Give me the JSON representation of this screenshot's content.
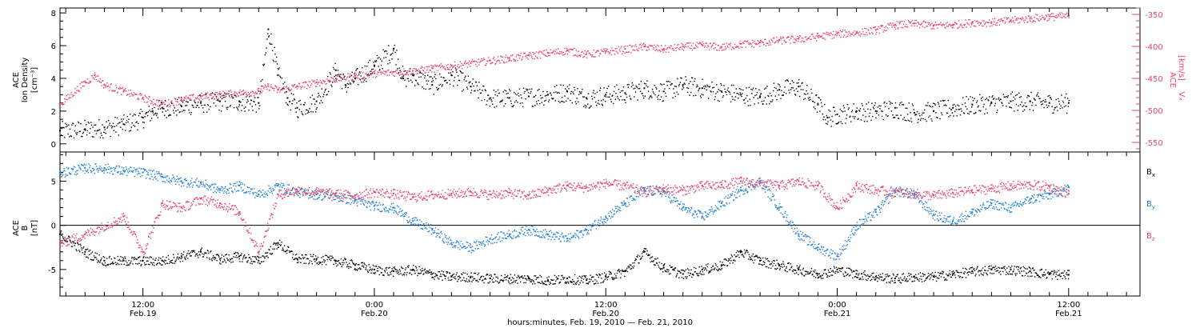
{
  "colors": {
    "axes": "#000000",
    "pink": "#e8436b",
    "blue": "#1e7fd8",
    "black": "#000000"
  },
  "xaxis": {
    "label": "hours:minutes, Feb. 19, 2010 — Feb. 21, 2010",
    "range_hours": [
      -4.3,
      51.7
    ],
    "ticks": [
      {
        "hour": 0,
        "time": "12:00",
        "date": "Feb.19"
      },
      {
        "hour": 12,
        "time": "0:00",
        "date": "Feb.20"
      },
      {
        "hour": 24,
        "time": "12:00",
        "date": "Feb.20"
      },
      {
        "hour": 36,
        "time": "0:00",
        "date": "Feb.21"
      },
      {
        "hour": 48,
        "time": "12:00",
        "date": "Feb.21"
      }
    ]
  },
  "chart_data": [
    {
      "type": "scatter",
      "panel": "top",
      "left_axis": {
        "label_line1": "ACE",
        "label_line2": "Ion Density",
        "unit": "[cm⁻³]",
        "ylim": [
          -0.5,
          8.3
        ],
        "ticks": [
          0,
          2,
          4,
          6,
          8
        ]
      },
      "right_axis": {
        "label_line1": "ACE",
        "label_line2": "Vₓ",
        "unit": "[km/s]",
        "ylim": [
          -565,
          -340
        ],
        "ticks": [
          -550,
          -500,
          -450,
          -400,
          -350
        ]
      },
      "series": [
        {
          "axis": "left",
          "color": "black",
          "x": [
            -4.3,
            -3,
            -2,
            -1,
            0,
            0.5,
            1,
            2,
            3,
            4,
            5,
            6,
            6.5,
            7,
            7.5,
            8,
            9,
            10,
            10.5,
            11,
            12,
            13,
            13.5,
            14,
            15,
            16,
            17,
            18,
            19,
            20,
            21,
            22,
            23,
            24,
            25,
            26,
            27,
            28,
            29,
            30,
            31,
            32,
            33,
            34,
            35,
            35.5,
            36,
            37,
            38,
            39,
            40,
            41,
            42,
            43,
            44,
            45,
            46,
            47,
            48
          ],
          "y": [
            0.8,
            0.9,
            1.0,
            1.2,
            1.6,
            2.0,
            2.2,
            2.3,
            2.5,
            2.6,
            2.6,
            2.5,
            7.0,
            4.2,
            2.8,
            2.2,
            2.6,
            4.5,
            3.6,
            4.0,
            4.8,
            5.8,
            4.0,
            4.2,
            3.6,
            4.2,
            3.5,
            2.8,
            2.8,
            2.9,
            3.0,
            3.2,
            2.8,
            3.0,
            3.1,
            3.4,
            3.2,
            3.6,
            3.4,
            3.2,
            3.0,
            2.9,
            3.3,
            3.5,
            2.4,
            1.6,
            1.8,
            2.0,
            2.0,
            2.2,
            1.9,
            2.0,
            2.2,
            2.4,
            2.5,
            2.6,
            2.6,
            2.5,
            2.5
          ]
        },
        {
          "axis": "right",
          "color": "pink",
          "x": [
            -4.3,
            -3,
            -2.5,
            -2,
            -1,
            0,
            1,
            2,
            3,
            4,
            5,
            6,
            6.5,
            7,
            8,
            9,
            10,
            11,
            12,
            13,
            14,
            15,
            16,
            17,
            18,
            19,
            20,
            21,
            22,
            23,
            24,
            25,
            26,
            27,
            28,
            29,
            30,
            31,
            32,
            33,
            34,
            35,
            36,
            37,
            38,
            39,
            40,
            41,
            42,
            43,
            44,
            45,
            46,
            47,
            48
          ],
          "y": [
            -490,
            -455,
            -445,
            -460,
            -470,
            -480,
            -490,
            -483,
            -478,
            -475,
            -472,
            -470,
            -462,
            -468,
            -462,
            -456,
            -450,
            -446,
            -442,
            -440,
            -438,
            -434,
            -430,
            -426,
            -422,
            -418,
            -414,
            -410,
            -406,
            -412,
            -408,
            -404,
            -400,
            -404,
            -400,
            -398,
            -401,
            -396,
            -394,
            -390,
            -388,
            -384,
            -380,
            -378,
            -374,
            -366,
            -364,
            -367,
            -366,
            -362,
            -362,
            -359,
            -356,
            -353,
            -352
          ]
        }
      ]
    },
    {
      "type": "scatter",
      "panel": "bottom",
      "left_axis": {
        "label_line1": "ACE",
        "label_line2": "B",
        "unit": "[nT]",
        "ylim": [
          -8,
          8.3
        ],
        "ticks": [
          -5,
          0,
          5
        ]
      },
      "legend": [
        {
          "label": "B",
          "sub": "x",
          "color": "black"
        },
        {
          "label": "B",
          "sub": "y",
          "color": "blue"
        },
        {
          "label": "B",
          "sub": "z",
          "color": "pink"
        }
      ],
      "series": [
        {
          "name": "Bx",
          "color": "black",
          "x": [
            -4.3,
            -3,
            -2,
            -1,
            0,
            1,
            2,
            3,
            4,
            5,
            6,
            7,
            8,
            9,
            10,
            11,
            12,
            13,
            14,
            15,
            16,
            17,
            18,
            19,
            20,
            21,
            22,
            23,
            24,
            25,
            26,
            27,
            28,
            29,
            30,
            31,
            32,
            33,
            34,
            35,
            36,
            37,
            38,
            39,
            40,
            41,
            42,
            43,
            44,
            45,
            46,
            47,
            48
          ],
          "y": [
            -1,
            -3,
            -4,
            -4,
            -4,
            -4,
            -3.5,
            -3,
            -3.8,
            -3.5,
            -4,
            -2,
            -3.8,
            -3.8,
            -4,
            -4.5,
            -5,
            -5.2,
            -5,
            -5.5,
            -5.8,
            -5.8,
            -6,
            -6,
            -6,
            -6.2,
            -6,
            -6.2,
            -5.8,
            -5.2,
            -3,
            -4.8,
            -5.5,
            -5,
            -4.5,
            -3,
            -4,
            -4.5,
            -5,
            -5.5,
            -5,
            -5.5,
            -5.8,
            -6,
            -5.8,
            -5.8,
            -5.5,
            -5.2,
            -5,
            -5,
            -5.2,
            -5.5,
            -5.6
          ]
        },
        {
          "name": "By",
          "color": "blue",
          "x": [
            -4.3,
            -3,
            -2,
            -1,
            0,
            1,
            2,
            3,
            4,
            5,
            6,
            7,
            8,
            9,
            10,
            11,
            12,
            13,
            14,
            15,
            16,
            17,
            18,
            19,
            20,
            21,
            22,
            23,
            24,
            25,
            26,
            27,
            28,
            29,
            30,
            31,
            32,
            33,
            34,
            35,
            36,
            37,
            38,
            39,
            40,
            41,
            42,
            43,
            44,
            45,
            46,
            47,
            48
          ],
          "y": [
            6,
            6.5,
            6.5,
            6.2,
            6,
            5.5,
            5,
            4.8,
            4,
            4.5,
            3.5,
            4.5,
            3.8,
            3.5,
            3.3,
            2.8,
            2.2,
            2,
            0.5,
            -0.5,
            -2,
            -2.5,
            -1.5,
            -1,
            -0.5,
            -1,
            -1.5,
            -0.5,
            1,
            2.5,
            4,
            3.8,
            2,
            1,
            2.5,
            4,
            5,
            2,
            -1,
            -2.5,
            -3.5,
            0,
            1.5,
            4,
            3.5,
            1.2,
            0.5,
            1.5,
            2.5,
            2,
            3,
            3.5,
            4.3
          ]
        },
        {
          "name": "Bz",
          "color": "pink",
          "x": [
            -4.3,
            -3,
            -2,
            -1,
            0,
            1,
            2,
            3,
            4,
            5,
            6,
            7,
            8,
            9,
            10,
            11,
            12,
            13,
            14,
            15,
            16,
            17,
            18,
            19,
            20,
            21,
            22,
            23,
            24,
            25,
            26,
            27,
            28,
            29,
            30,
            31,
            32,
            33,
            34,
            35,
            36,
            37,
            38,
            39,
            40,
            41,
            42,
            43,
            44,
            45,
            46,
            47,
            48
          ],
          "y": [
            -2,
            -1,
            0,
            1,
            -3,
            2.5,
            2,
            3,
            2.5,
            1.5,
            -3,
            3.5,
            4,
            3.8,
            3.6,
            3.4,
            3.8,
            3.6,
            3.2,
            3.5,
            3.6,
            3.8,
            3.5,
            3.7,
            3.4,
            4,
            4.5,
            4.3,
            4.8,
            4.5,
            3.8,
            4.2,
            4,
            4.5,
            4.6,
            5,
            4.8,
            4.5,
            5,
            4.5,
            2,
            4.5,
            4,
            3.8,
            3.6,
            3.4,
            3.7,
            4,
            4.2,
            4.5,
            4.6,
            4.4,
            3.6
          ]
        }
      ]
    }
  ]
}
